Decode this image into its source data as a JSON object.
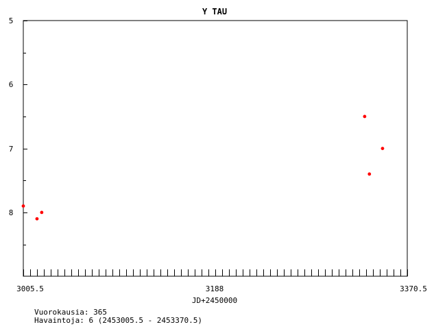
{
  "chart_data": {
    "type": "scatter",
    "title": "Y TAU",
    "xlabel": "JD+2450000",
    "ylabel": "",
    "xlim": [
      3005.5,
      3370.5
    ],
    "ylim": [
      5,
      9
    ],
    "y_inverted": true,
    "x_tick_labels": [
      "3005.5",
      "3188",
      "3370.5"
    ],
    "y_tick_labels": [
      "5",
      "6",
      "7",
      "8"
    ],
    "series": [
      {
        "color": "#ff0000",
        "points": [
          {
            "x": 3005.5,
            "y": 7.9
          },
          {
            "x": 3018.5,
            "y": 8.1
          },
          {
            "x": 3023.0,
            "y": 8.0
          },
          {
            "x": 3330.0,
            "y": 6.5
          },
          {
            "x": 3334.5,
            "y": 7.4
          },
          {
            "x": 3347.0,
            "y": 7.0
          }
        ]
      }
    ]
  },
  "footer": {
    "days": "Vuorokausia: 365",
    "observations": "Havaintoja: 6 (2453005.5 - 2453370.5)"
  }
}
